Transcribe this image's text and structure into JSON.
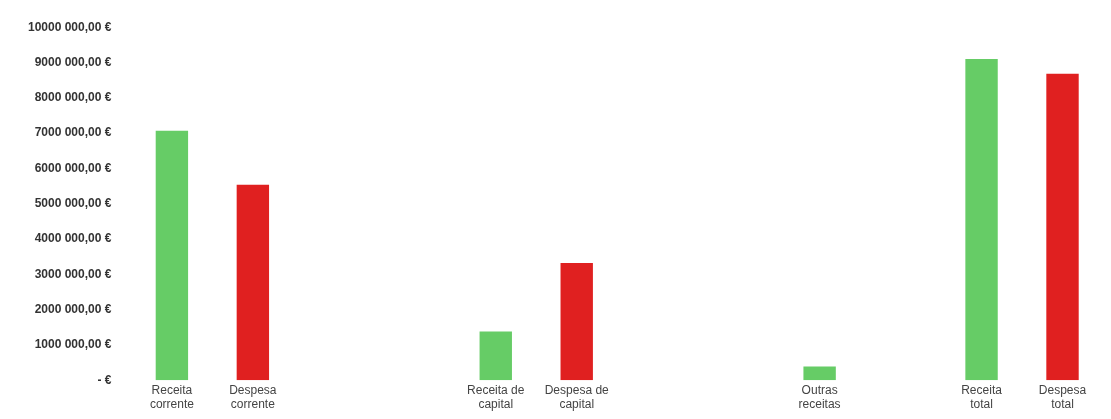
{
  "chart_data": {
    "type": "bar",
    "categories": [
      "Receita corrente",
      "Despesa corrente",
      null,
      null,
      "Receita de capital",
      "Despesa de capital",
      null,
      null,
      "Outras receitas",
      null,
      "Receita total",
      "Despesa total"
    ],
    "values": [
      7070000.0,
      5540000.0,
      null,
      null,
      1380000.0,
      3320000.0,
      null,
      null,
      390000.0,
      null,
      9100000.0,
      8680000.0
    ],
    "colors": [
      "#66cc66",
      "#e02020",
      null,
      null,
      "#66cc66",
      "#e02020",
      null,
      null,
      "#66cc66",
      null,
      "#66cc66",
      "#e02020"
    ],
    "ylim": [
      0,
      10000000
    ],
    "yticks": [
      {
        "value": 0,
        "label": "- €"
      },
      {
        "value": 1000000,
        "label": "1000 000,00 €"
      },
      {
        "value": 2000000,
        "label": "2000 000,00 €"
      },
      {
        "value": 3000000,
        "label": "3000 000,00 €"
      },
      {
        "value": 4000000,
        "label": "4000 000,00 €"
      },
      {
        "value": 5000000,
        "label": "5000 000,00 €"
      },
      {
        "value": 6000000,
        "label": "6000 000,00 €"
      },
      {
        "value": 7000000,
        "label": "7000 000,00 €"
      },
      {
        "value": 8000000,
        "label": "8000 000,00 €"
      },
      {
        "value": 9000000,
        "label": "9000 000,00 €"
      },
      {
        "value": 10000000,
        "label": "10000 000,00 €"
      }
    ],
    "grid": false,
    "legend": false
  }
}
